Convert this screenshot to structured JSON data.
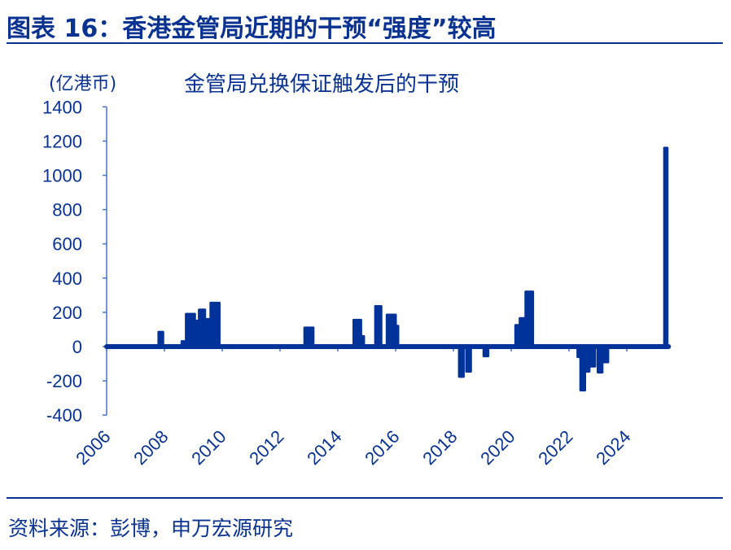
{
  "header": {
    "title": "图表 16：香港金管局近期的干预“强度”较高"
  },
  "footer": {
    "source": "资料来源：彭博，申万宏源研究"
  },
  "colors": {
    "accent": "#0a3290",
    "series": "#003399"
  },
  "chart_data": {
    "type": "bar",
    "title": "金管局兑换保证触发后的干预",
    "ylabel": "(亿港币)",
    "xlabel": "",
    "ylim": [
      -400,
      1400
    ],
    "xlim": [
      2006,
      2025.5
    ],
    "yticks": [
      1400,
      1200,
      1000,
      800,
      600,
      400,
      200,
      0,
      -200,
      -400
    ],
    "xticks": [
      "2006",
      "2008",
      "2010",
      "2012",
      "2014",
      "2016",
      "2018",
      "2020",
      "2022",
      "2024"
    ],
    "grid": false,
    "legend": "none",
    "bars": [
      {
        "start": 2007.8,
        "end": 2007.95,
        "value": 85
      },
      {
        "start": 2008.6,
        "end": 2008.75,
        "value": 30
      },
      {
        "start": 2008.75,
        "end": 2009.05,
        "value": 190
      },
      {
        "start": 2009.05,
        "end": 2009.2,
        "value": 150
      },
      {
        "start": 2009.2,
        "end": 2009.4,
        "value": 215
      },
      {
        "start": 2009.4,
        "end": 2009.6,
        "value": 160
      },
      {
        "start": 2009.6,
        "end": 2009.9,
        "value": 255
      },
      {
        "start": 2012.85,
        "end": 2013.15,
        "value": 110
      },
      {
        "start": 2014.55,
        "end": 2014.8,
        "value": 155
      },
      {
        "start": 2014.8,
        "end": 2014.9,
        "value": 60
      },
      {
        "start": 2015.3,
        "end": 2015.5,
        "value": 235
      },
      {
        "start": 2015.7,
        "end": 2016.0,
        "value": 185
      },
      {
        "start": 2016.0,
        "end": 2016.07,
        "value": 120
      },
      {
        "start": 2018.2,
        "end": 2018.35,
        "value": -175
      },
      {
        "start": 2018.45,
        "end": 2018.6,
        "value": -145
      },
      {
        "start": 2019.05,
        "end": 2019.2,
        "value": -55
      },
      {
        "start": 2020.15,
        "end": 2020.3,
        "value": 125
      },
      {
        "start": 2020.3,
        "end": 2020.5,
        "value": 165
      },
      {
        "start": 2020.5,
        "end": 2020.75,
        "value": 320
      },
      {
        "start": 2022.3,
        "end": 2022.4,
        "value": -60
      },
      {
        "start": 2022.4,
        "end": 2022.55,
        "value": -255
      },
      {
        "start": 2022.55,
        "end": 2022.7,
        "value": -145
      },
      {
        "start": 2022.7,
        "end": 2022.9,
        "value": -115
      },
      {
        "start": 2023.0,
        "end": 2023.15,
        "value": -150
      },
      {
        "start": 2023.15,
        "end": 2023.35,
        "value": -90
      },
      {
        "start": 2025.3,
        "end": 2025.4,
        "value": 1160
      }
    ]
  }
}
